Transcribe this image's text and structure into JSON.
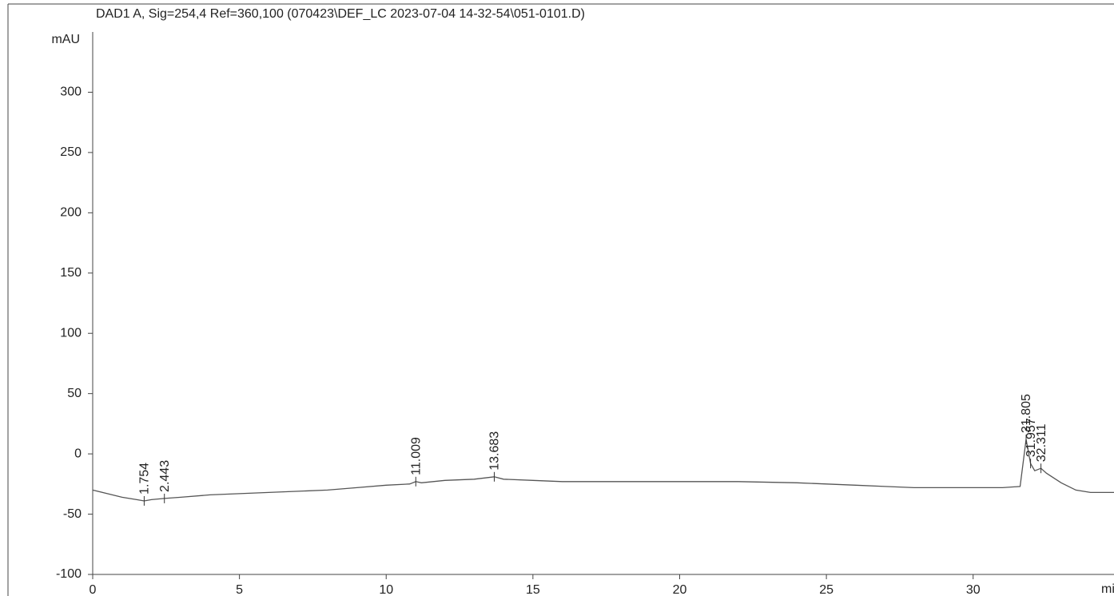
{
  "chart_data": {
    "type": "line",
    "title": "DAD1 A, Sig=254,4 Ref=360,100 (070423\\DEF_LC 2023-07-04 14-32-54\\051-0101.D)",
    "ylabel": "mAU",
    "xlabel": "min",
    "xlim": [
      0,
      34.8
    ],
    "ylim": [
      -100,
      350
    ],
    "xticks": [
      0,
      5,
      10,
      15,
      20,
      25,
      30
    ],
    "yticks": [
      -100,
      -50,
      0,
      50,
      100,
      150,
      200,
      250,
      300
    ],
    "series": [
      {
        "name": "DAD1 A",
        "color": "#555555",
        "x": [
          0,
          0.5,
          1,
          1.5,
          1.754,
          2,
          2.443,
          3,
          4,
          5,
          6,
          7,
          8,
          9,
          10,
          10.8,
          11.009,
          11.2,
          12,
          13,
          13.683,
          14,
          15,
          16,
          18,
          20,
          22,
          24,
          25,
          26,
          27,
          28,
          29,
          30,
          31,
          31.6,
          31.805,
          31.957,
          32.1,
          32.311,
          32.5,
          33,
          33.5,
          34,
          34.8
        ],
        "values": [
          -30,
          -33,
          -36,
          -38,
          -39,
          -38,
          -37,
          -36,
          -34,
          -33,
          -32,
          -31,
          -30,
          -28,
          -26,
          -25,
          -23,
          -24,
          -22,
          -21,
          -19,
          -21,
          -22,
          -23,
          -23,
          -23,
          -23,
          -24,
          -25,
          -26,
          -27,
          -28,
          -28,
          -28,
          -28,
          -27,
          12,
          -8,
          -14,
          -12,
          -16,
          -24,
          -30,
          -32,
          -32
        ]
      }
    ],
    "peaks": [
      1.754,
      2.443,
      11.009,
      13.683,
      31.805,
      31.957,
      32.311
    ]
  }
}
